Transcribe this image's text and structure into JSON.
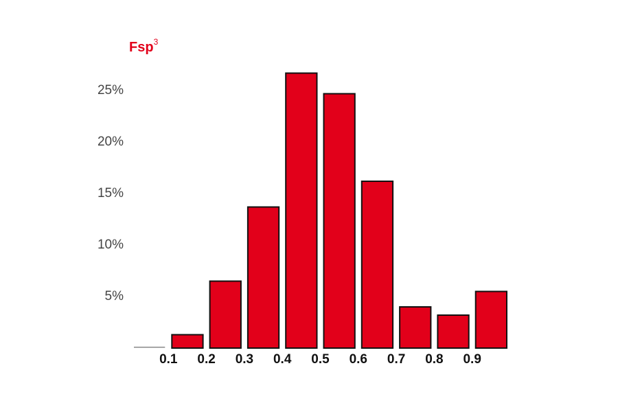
{
  "chart_data": {
    "type": "histogram",
    "title": "Fsp",
    "title_superscript": "3",
    "title_color": "#e2001a",
    "bins": [
      0,
      0.1,
      0.2,
      0.3,
      0.4,
      0.5,
      0.6,
      0.7,
      0.8,
      0.9,
      1.0
    ],
    "values": [
      0.1,
      1.3,
      6.5,
      13.7,
      26.7,
      24.7,
      16.2,
      4.0,
      3.2,
      5.5
    ],
    "color": "#e2001a",
    "xlim": [
      0,
      1
    ],
    "xticks": [
      0.1,
      0.2,
      0.3,
      0.4,
      0.5,
      0.6,
      0.7,
      0.8,
      0.9
    ],
    "ylim": [
      0,
      27
    ],
    "yticks": [
      {
        "value": 5,
        "label": "5%"
      },
      {
        "value": 10,
        "label": "10%"
      },
      {
        "value": 15,
        "label": "15%"
      },
      {
        "value": 20,
        "label": "20%"
      },
      {
        "value": 25,
        "label": "25%"
      }
    ],
    "grid": false
  }
}
